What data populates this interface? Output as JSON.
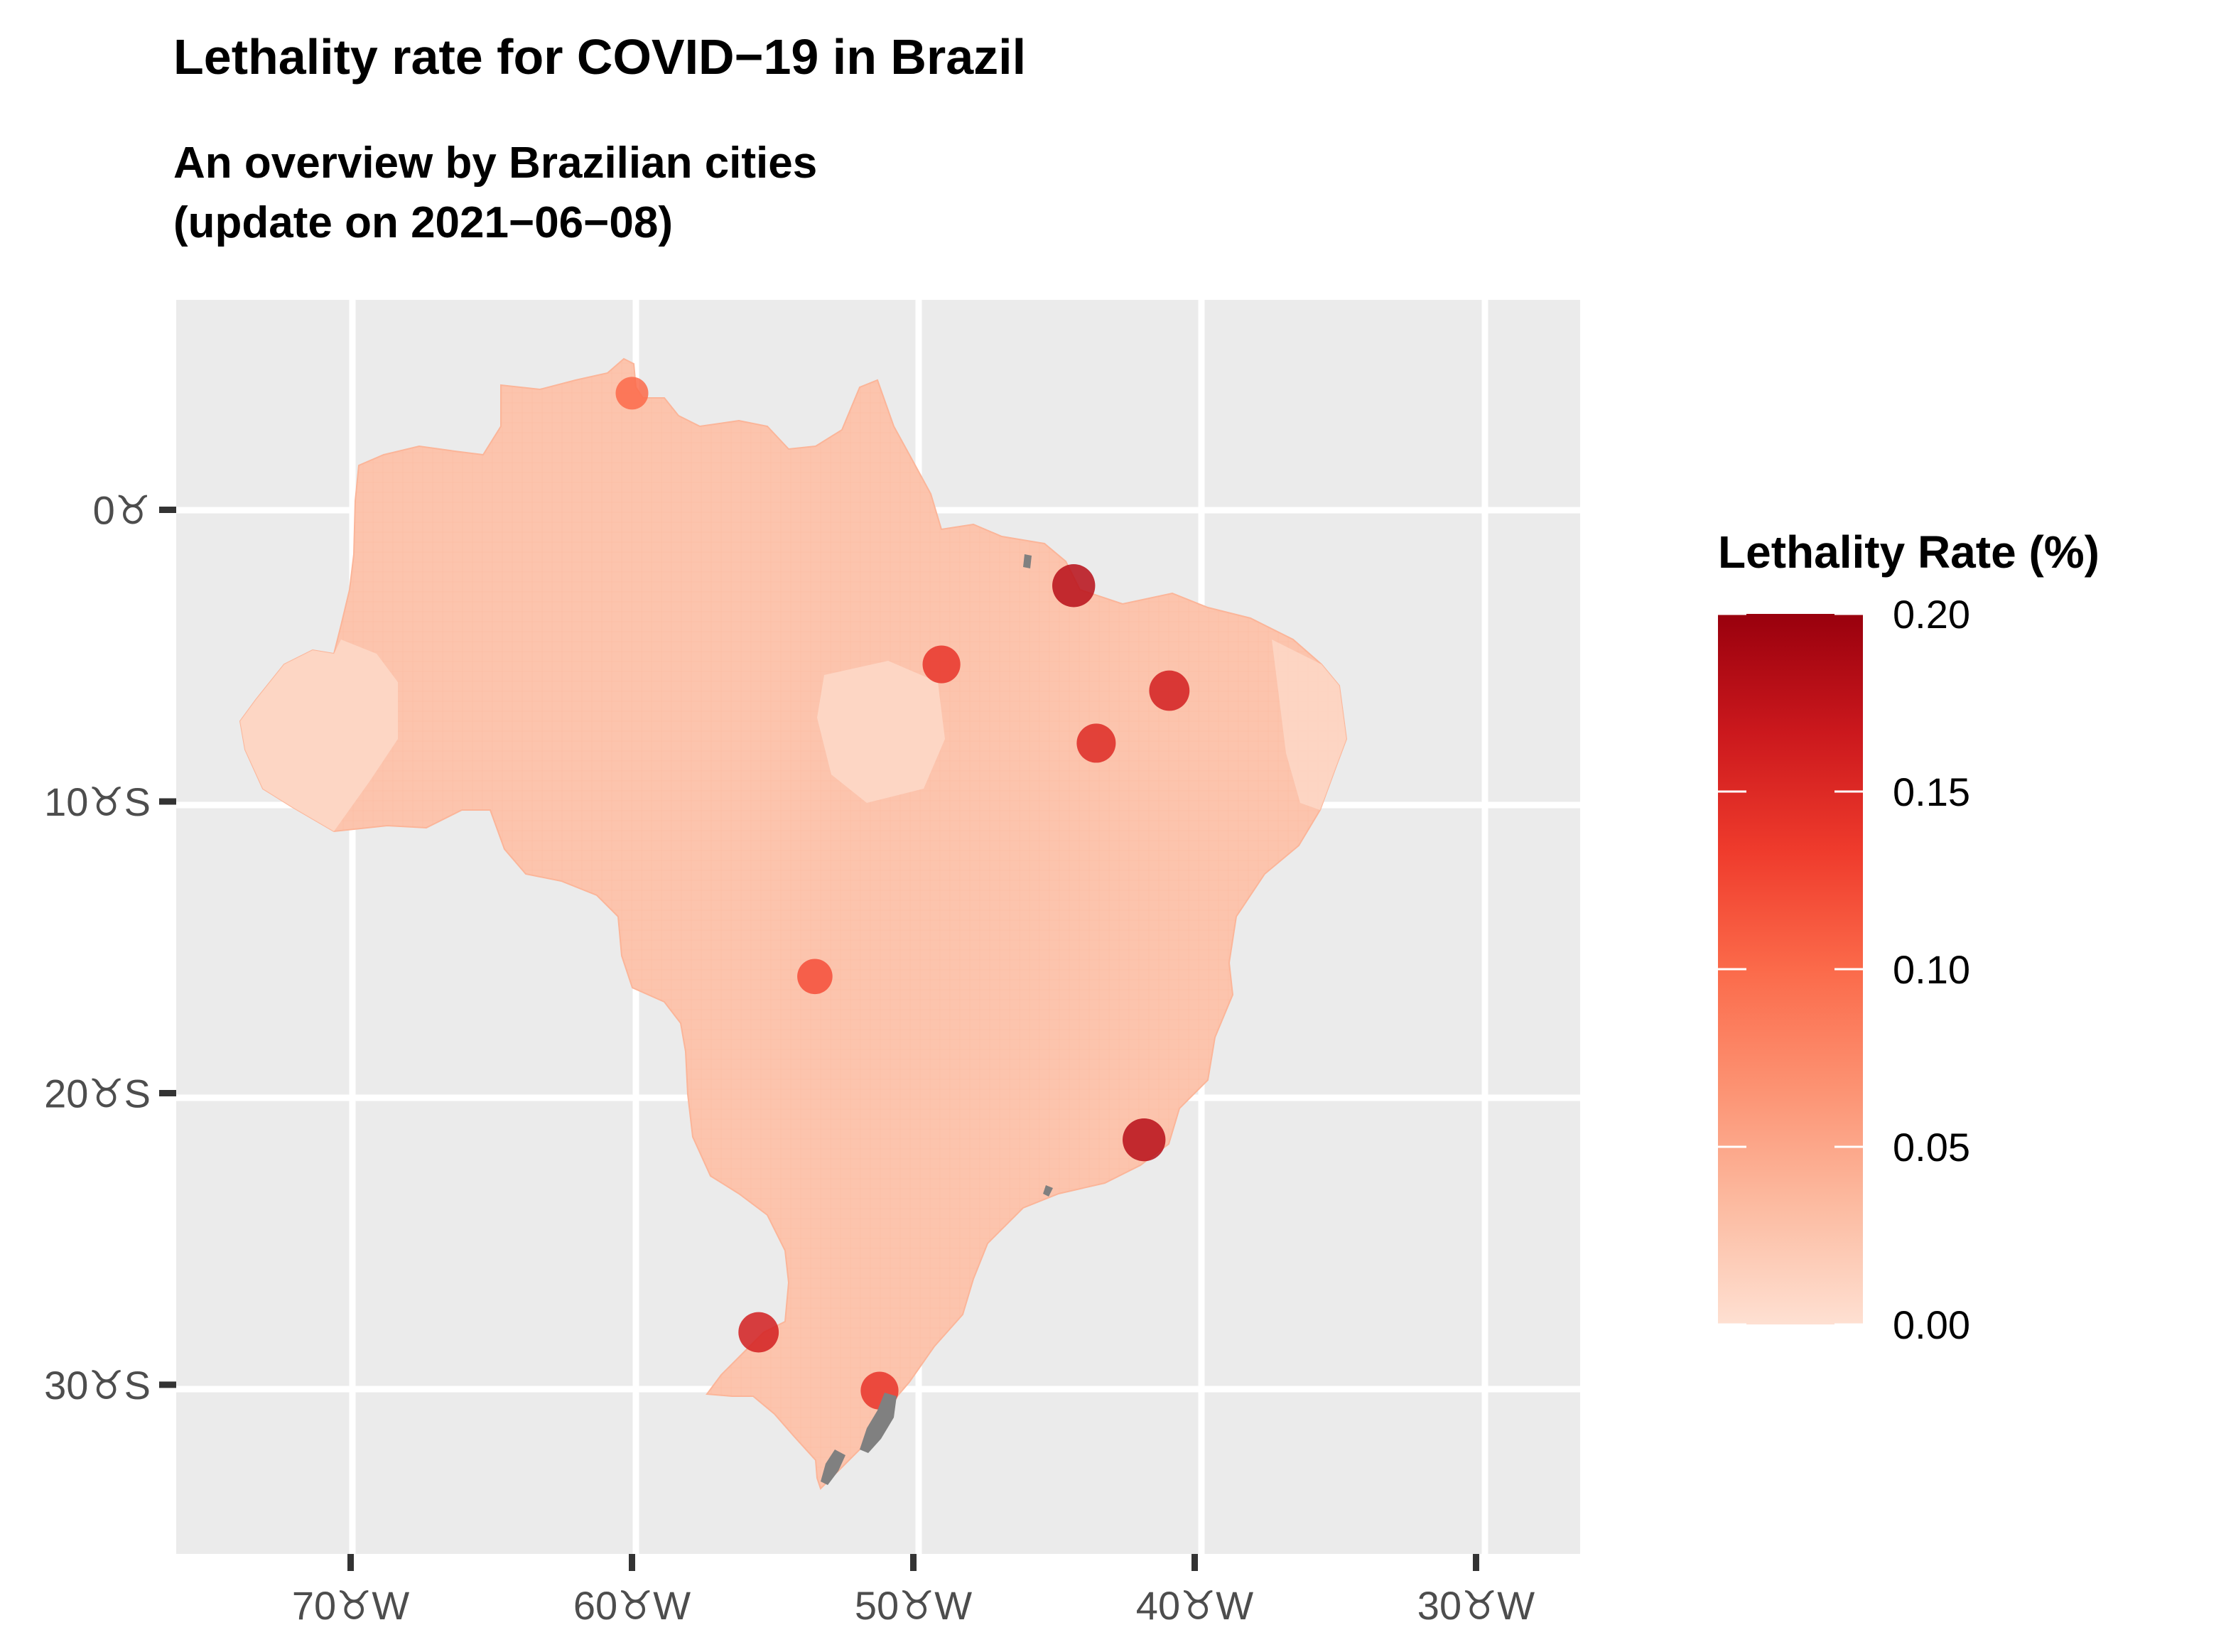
{
  "title": "Lethality rate for COVID−19 in Brazil",
  "subtitle": {
    "line1": "An overview by Brazilian cities",
    "line2": "(update on 2021−06−08)"
  },
  "chart_data": {
    "type": "choropleth",
    "title": "Lethality rate for COVID−19 in Brazil",
    "subtitle": "An overview by Brazilian cities (update on 2021−06−08)",
    "region": "Brazil, by municipality",
    "x_axis": {
      "label": "",
      "ticks": [
        {
          "value": -70,
          "label": "70♉W"
        },
        {
          "value": -60,
          "label": "60♉W"
        },
        {
          "value": -50,
          "label": "50♉W"
        },
        {
          "value": -40,
          "label": "40♉W"
        },
        {
          "value": -30,
          "label": "30♉W"
        }
      ],
      "range": [
        -76.2,
        -26.3
      ]
    },
    "y_axis": {
      "label": "",
      "ticks": [
        {
          "value": 0,
          "label": "0♉"
        },
        {
          "value": -10,
          "label": "10♉S"
        },
        {
          "value": -20,
          "label": "20♉S"
        },
        {
          "value": -30,
          "label": "30♉S"
        }
      ],
      "range": [
        -35.8,
        7.2
      ]
    },
    "legend": {
      "title": "Lethality Rate (%)",
      "position": "right",
      "min": 0.0,
      "max": 0.2,
      "breaks": [
        {
          "value": 0.0,
          "label": "0.00"
        },
        {
          "value": 0.05,
          "label": "0.05"
        },
        {
          "value": 0.1,
          "label": "0.10"
        },
        {
          "value": 0.15,
          "label": "0.15"
        },
        {
          "value": 0.2,
          "label": "0.20"
        }
      ],
      "colors": [
        "#fee0d2",
        "#fcbba1",
        "#fc9272",
        "#fb6a4a",
        "#ef3b2c",
        "#cb181d",
        "#99000d"
      ]
    },
    "na_color": "#808080",
    "panel_background": "#ebebeb",
    "grid": true,
    "typical_value": 0.03,
    "hotspots": [
      {
        "name": "north-amapa",
        "lon": -60.0,
        "lat": 4.0,
        "value": 0.1
      },
      {
        "name": "para-east",
        "lon": -49.0,
        "lat": -5.3,
        "value": 0.14
      },
      {
        "name": "maranhao-north",
        "lon": -44.3,
        "lat": -2.6,
        "value": 0.18
      },
      {
        "name": "piaui-south",
        "lon": -43.5,
        "lat": -8.0,
        "value": 0.15
      },
      {
        "name": "bahia-central",
        "lon": -40.9,
        "lat": -6.2,
        "value": 0.16
      },
      {
        "name": "mato-grosso-south",
        "lon": -53.5,
        "lat": -16.0,
        "value": 0.12
      },
      {
        "name": "espirito-santo-coast",
        "lon": -41.8,
        "lat": -21.6,
        "value": 0.18
      },
      {
        "name": "rio-grande-do-sul-west",
        "lon": -55.5,
        "lat": -28.2,
        "value": 0.16
      },
      {
        "name": "rio-grande-do-sul-coast",
        "lon": -51.2,
        "lat": -30.2,
        "value": 0.14
      }
    ],
    "na_regions": [
      {
        "name": "lagoa-dos-patos",
        "lon": -51.2,
        "lat": -31.0
      },
      {
        "name": "lagoa-mirim",
        "lon": -52.8,
        "lat": -32.9
      }
    ]
  }
}
